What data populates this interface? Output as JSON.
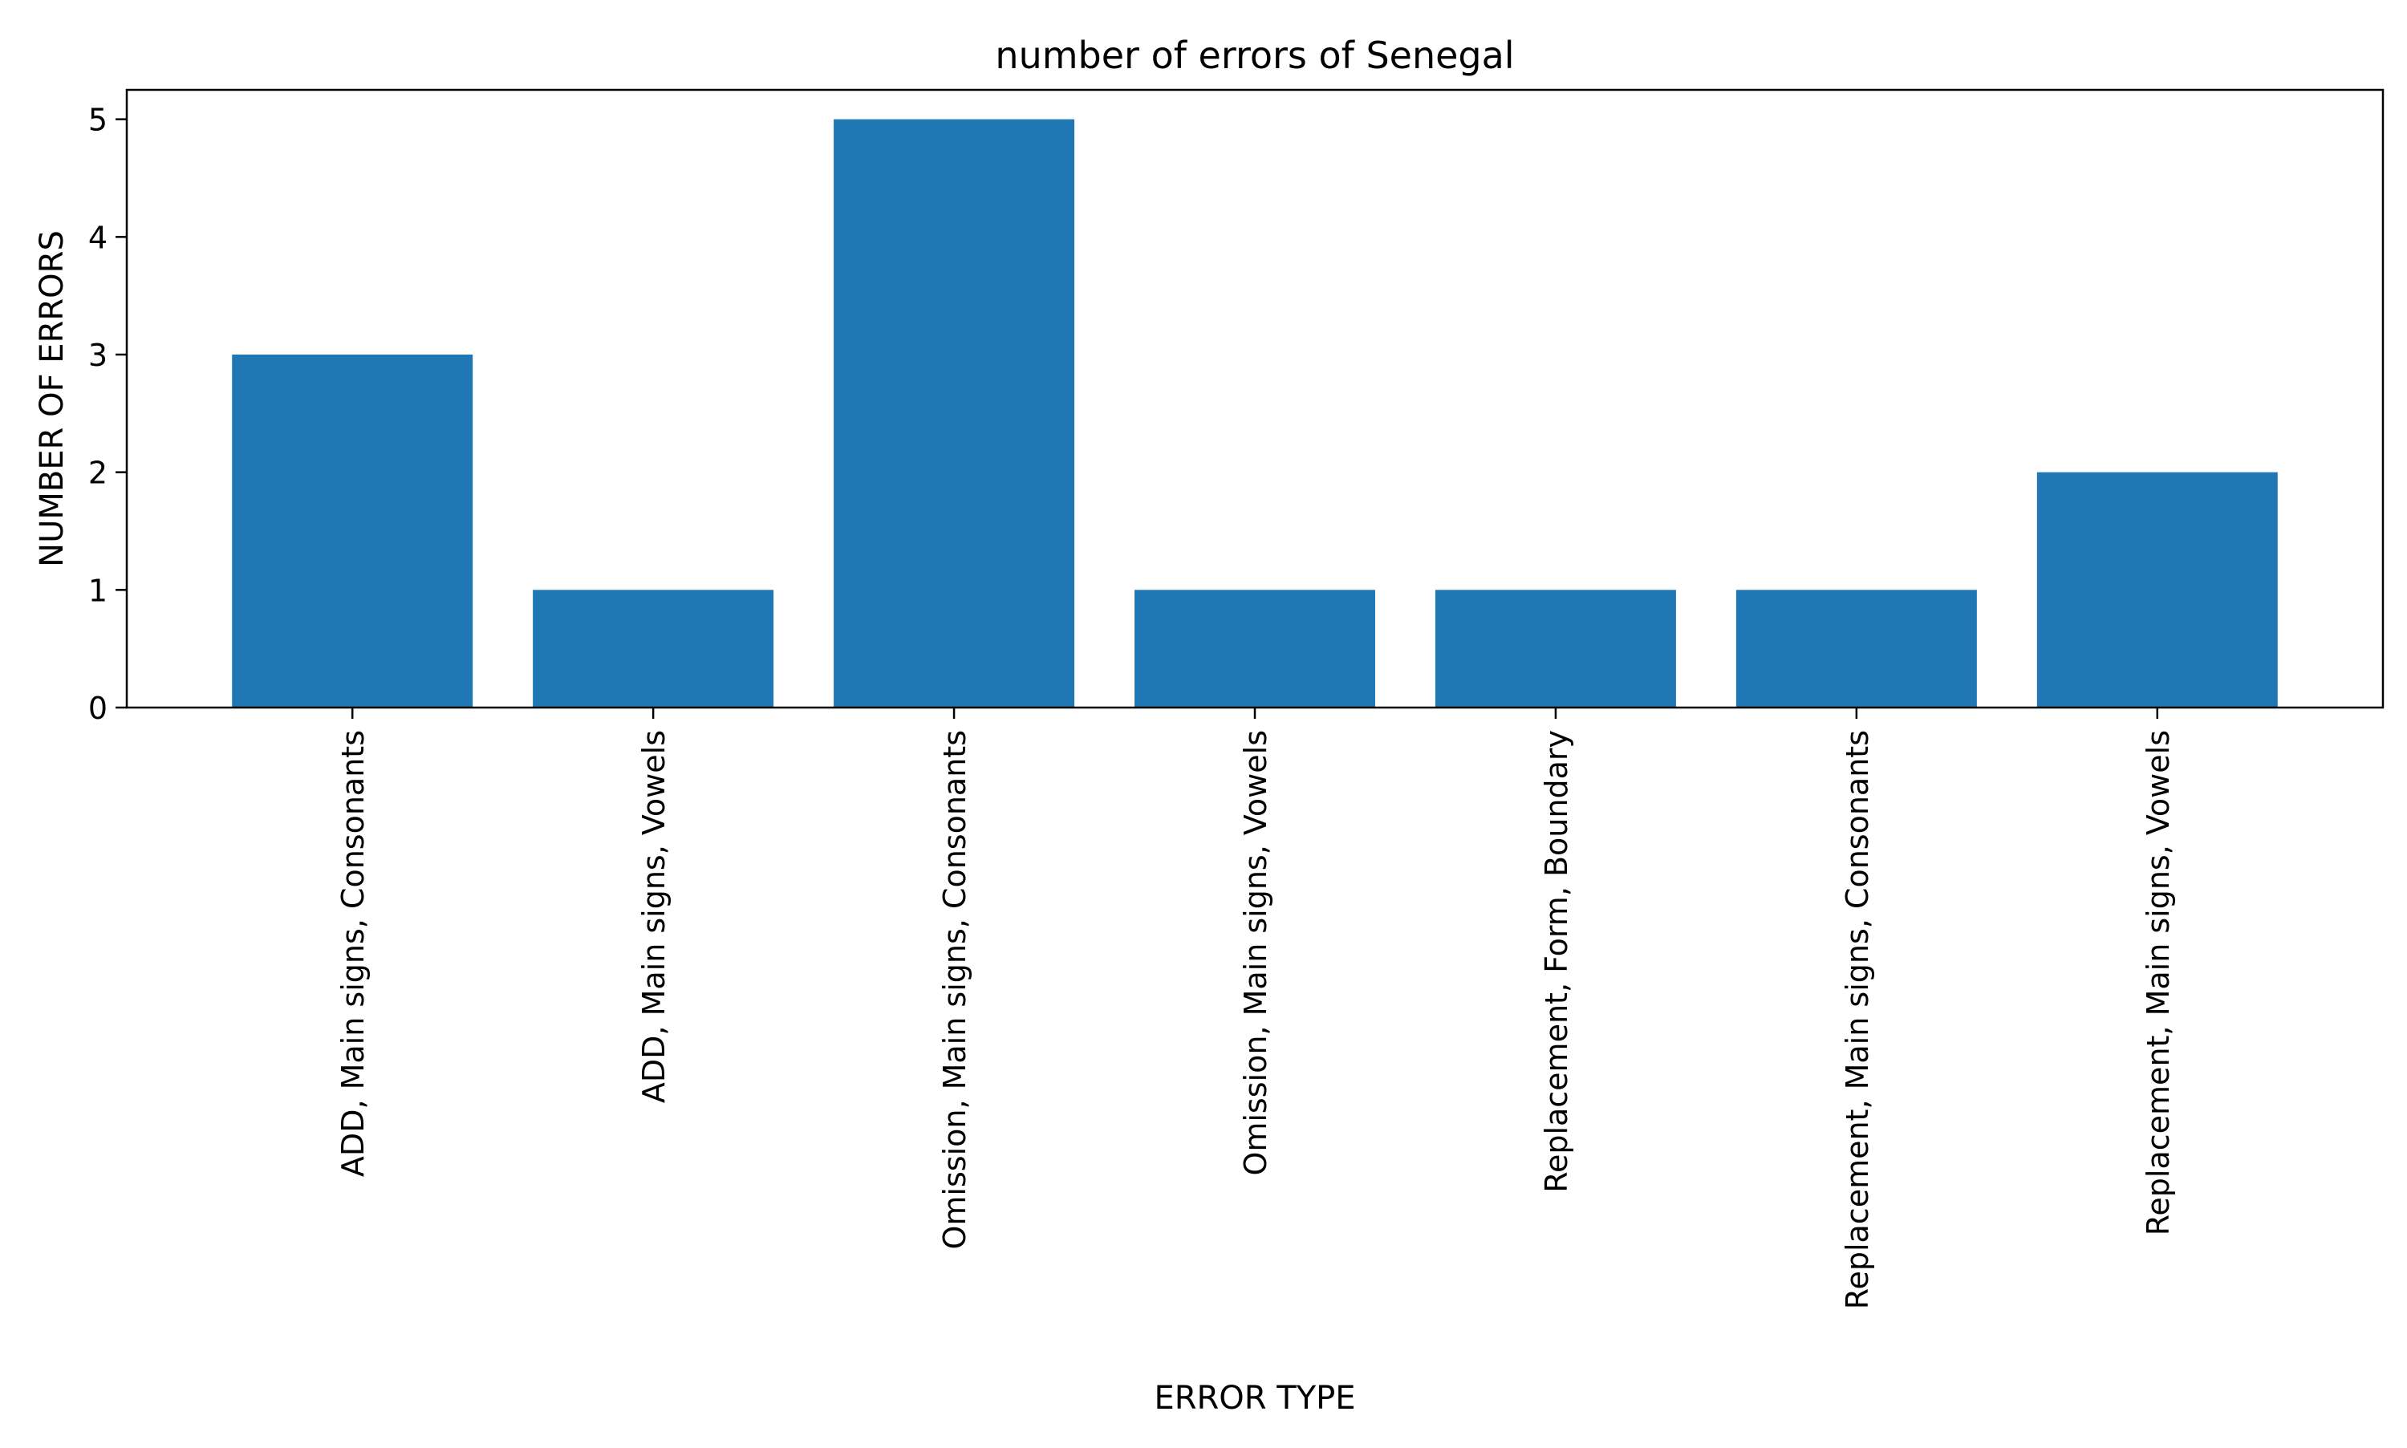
{
  "chart_data": {
    "type": "bar",
    "title": "number of errors of Senegal",
    "xlabel": "ERROR TYPE",
    "ylabel": "NUMBER OF ERRORS",
    "categories": [
      "ADD, Main signs, Consonants",
      "ADD, Main signs, Vowels",
      "Omission, Main signs, Consonants",
      "Omission, Main signs, Vowels",
      "Replacement, Form, Boundary",
      "Replacement, Main signs, Consonants",
      "Replacement, Main signs, Vowels"
    ],
    "values": [
      3,
      1,
      5,
      1,
      1,
      1,
      2
    ],
    "yticks": [
      0,
      1,
      2,
      3,
      4,
      5
    ],
    "ylim": [
      0,
      5.25
    ],
    "grid": false,
    "legend": "none",
    "bar_color": "#1f77b4"
  }
}
